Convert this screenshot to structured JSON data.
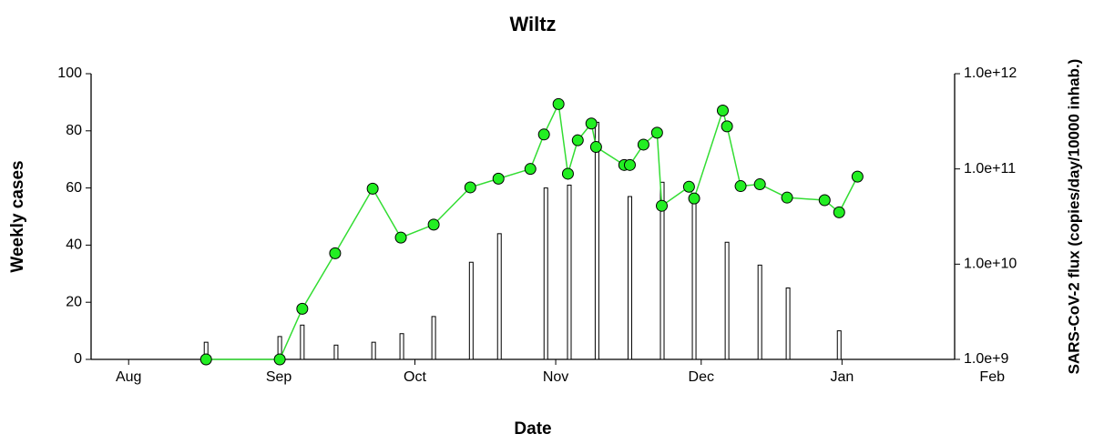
{
  "chart_data": {
    "type": "combo",
    "title": "Wiltz",
    "xlabel": "Date",
    "ylabel": "Weekly cases",
    "y2label": "SARS-CoV-2 flux (copies/day/10000 inhab.)",
    "xlim": [
      0,
      184
    ],
    "xticks": [
      {
        "value": 8,
        "label": "Aug"
      },
      {
        "value": 40,
        "label": "Sep"
      },
      {
        "value": 69,
        "label": "Oct"
      },
      {
        "value": 99,
        "label": "Nov"
      },
      {
        "value": 130,
        "label": "Dec"
      },
      {
        "value": 160,
        "label": "Jan"
      },
      {
        "value": 192,
        "label": "Feb"
      }
    ],
    "ylim": [
      0,
      100
    ],
    "yticks": [
      0,
      20,
      40,
      60,
      80,
      100
    ],
    "y2lim": [
      1000000000,
      1000000000000
    ],
    "y2log": true,
    "y2ticks": [
      {
        "value": 1000000000,
        "label": "1.0e+9"
      },
      {
        "value": 10000000000,
        "label": "1.0e+10"
      },
      {
        "value": 100000000000,
        "label": "1.0e+11"
      },
      {
        "value": 1000000000000,
        "label": "1.0e+12"
      }
    ],
    "grid": false,
    "series": [
      {
        "type": "bar",
        "color": "#ffffff",
        "x": [
          24.5,
          40.2,
          45,
          52.2,
          60.2,
          66.2,
          73,
          81,
          87,
          96.9,
          101.9,
          107.8,
          114.8,
          121.7,
          128.5,
          135.5,
          142.5,
          148.5,
          159.4
        ],
        "values": [
          6,
          8,
          12,
          5,
          6,
          9,
          15,
          34,
          44,
          60,
          61,
          83,
          57,
          62,
          57,
          41,
          33,
          25,
          10
        ]
      },
      {
        "type": "line",
        "axis": "y2",
        "color": "#33dd33",
        "marker_color": "#22ee22",
        "x": [
          24.5,
          40.2,
          45,
          52,
          60,
          66,
          73,
          80.8,
          86.8,
          93.6,
          96.5,
          99.6,
          101.6,
          103.7,
          106.6,
          107.6,
          113.6,
          114.8,
          117.7,
          120.6,
          121.6,
          127.4,
          128.5,
          134.6,
          135.5,
          138.4,
          142.5,
          148.3,
          156.3,
          159.4,
          163.3
        ],
        "values": [
          1000000000,
          1000000000,
          3400000000,
          13000000000,
          62000000000,
          19000000000,
          26000000000,
          64000000000,
          79000000000,
          100000000000,
          230000000000,
          480000000000,
          89000000000,
          200000000000,
          300000000000,
          170000000000,
          110000000000,
          110000000000,
          180000000000,
          240000000000,
          41000000000,
          65000000000,
          49000000000,
          410000000000,
          280000000000,
          66000000000,
          69000000000,
          50000000000,
          47000000000,
          35000000000,
          83000000000
        ]
      }
    ]
  }
}
